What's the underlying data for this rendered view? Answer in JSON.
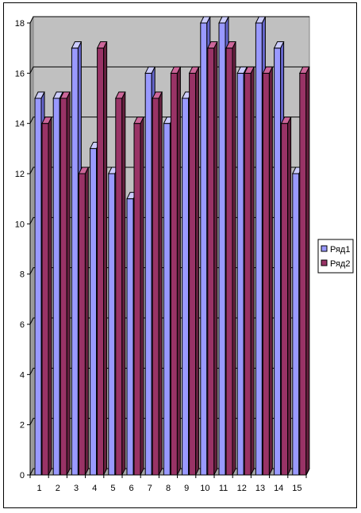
{
  "chart_data": {
    "type": "bar",
    "categories": [
      "1",
      "2",
      "3",
      "4",
      "5",
      "6",
      "7",
      "8",
      "9",
      "10",
      "11",
      "12",
      "13",
      "14",
      "15"
    ],
    "series": [
      {
        "name": "Ряд1",
        "values": [
          15,
          15,
          17,
          13,
          12,
          11,
          16,
          14,
          15,
          18,
          18,
          16,
          18,
          17,
          12
        ]
      },
      {
        "name": "Ряд2",
        "values": [
          14,
          15,
          12,
          17,
          15,
          14,
          15,
          16,
          16,
          17,
          17,
          16,
          16,
          14,
          16
        ]
      }
    ],
    "ylim": [
      0,
      18
    ],
    "yticks": [
      "0",
      "2",
      "4",
      "6",
      "8",
      "10",
      "12",
      "14",
      "16",
      "18"
    ],
    "grid": true,
    "legend_position": "right",
    "colors": {
      "series1_front": "#9999ff",
      "series1_side": "#6666cc",
      "series1_top": "#ccccff",
      "series2_front": "#993366",
      "series2_side": "#66203f",
      "series2_top": "#cc6699",
      "wall": "#c0c0c0",
      "floor": "#a6a6a6"
    }
  }
}
